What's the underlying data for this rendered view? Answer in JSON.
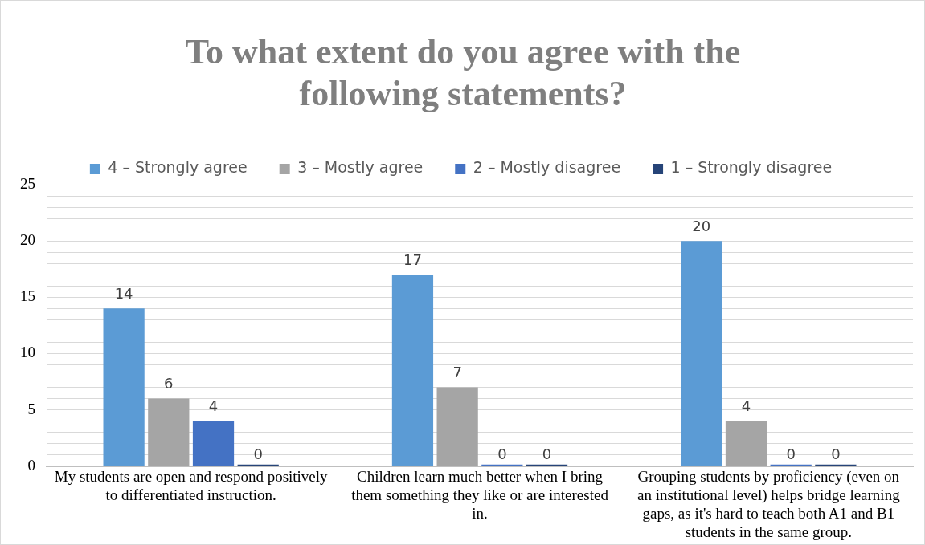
{
  "chart_data": {
    "type": "bar",
    "title": "To what extent do you agree with the following statements?",
    "categories": [
      "My students are open and respond positively to differentiated instruction.",
      "Children learn much better when I bring them something they like or are interested in.",
      "Grouping students by proficiency (even on an institutional level) helps bridge learning gaps, as it's hard to teach both A1 and B1 students in the same group."
    ],
    "series": [
      {
        "name": "4 – Strongly agree",
        "color": "#5b9bd5",
        "values": [
          14,
          17,
          20
        ]
      },
      {
        "name": "3 – Mostly agree",
        "color": "#a5a5a5",
        "values": [
          6,
          7,
          4
        ]
      },
      {
        "name": "2 – Mostly disagree",
        "color": "#4472c4",
        "values": [
          4,
          0,
          0
        ]
      },
      {
        "name": "1 – Strongly disagree",
        "color": "#264478",
        "values": [
          0,
          0,
          0
        ]
      }
    ],
    "ylim": [
      0,
      25
    ],
    "yticks": [
      0,
      {
        "value": 1,
        "label": null
      },
      {
        "value": 2,
        "label": null
      },
      {
        "value": 3,
        "label": null
      },
      {
        "value": 4,
        "label": null
      },
      5,
      {
        "value": 6,
        "label": null
      },
      {
        "value": 7,
        "label": null
      },
      {
        "value": 8,
        "label": null
      },
      {
        "value": 9,
        "label": null
      },
      10,
      {
        "value": 11,
        "label": null
      },
      {
        "value": 12,
        "label": null
      },
      {
        "value": 13,
        "label": null
      },
      {
        "value": 14,
        "label": null
      },
      15,
      {
        "value": 16,
        "label": null
      },
      {
        "value": 17,
        "label": null
      },
      {
        "value": 18,
        "label": null
      },
      {
        "value": 19,
        "label": null
      },
      20,
      {
        "value": 21,
        "label": null
      },
      {
        "value": 22,
        "label": null
      },
      {
        "value": 23,
        "label": null
      },
      {
        "value": 24,
        "label": null
      },
      25
    ],
    "grid": "y",
    "legend": "top",
    "data_labels": true
  }
}
